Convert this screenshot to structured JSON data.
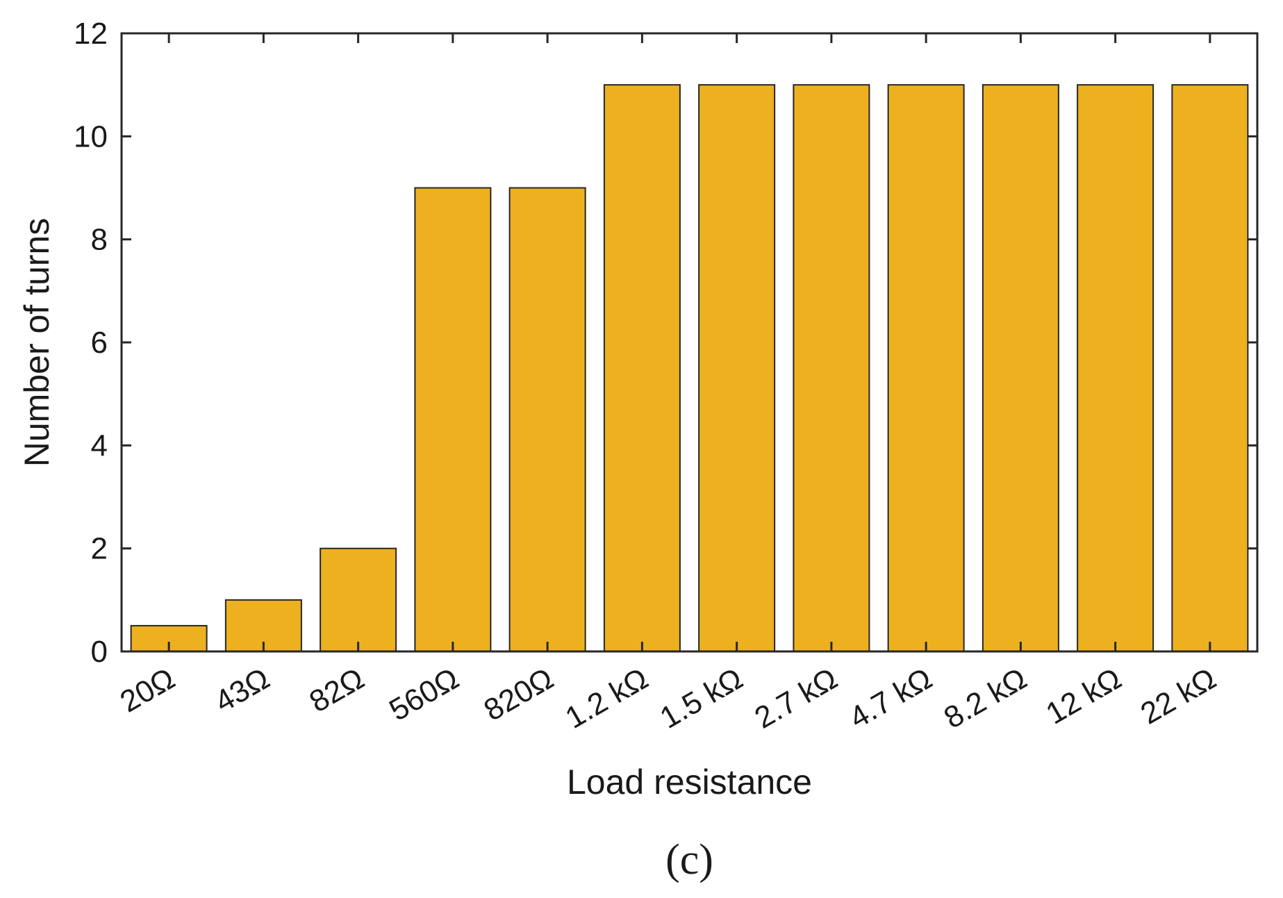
{
  "chart_data": {
    "type": "bar",
    "categories": [
      "20Ω",
      "43Ω",
      "82Ω",
      "560Ω",
      "820Ω",
      "1.2 kΩ",
      "1.5 kΩ",
      "2.7 kΩ",
      "4.7 kΩ",
      "8.2 kΩ",
      "12 kΩ",
      "22 kΩ"
    ],
    "values": [
      0.5,
      1,
      2,
      9,
      9,
      11,
      11,
      11,
      11,
      11,
      11,
      11
    ],
    "xlabel": "Load resistance",
    "ylabel": "Number of turns",
    "ylim": [
      0,
      12
    ],
    "yticks": [
      "0",
      "2",
      "4",
      "6",
      "8",
      "10",
      "12"
    ],
    "grid": false,
    "bar_color": "#EDB120"
  },
  "panel_label": "(c)"
}
